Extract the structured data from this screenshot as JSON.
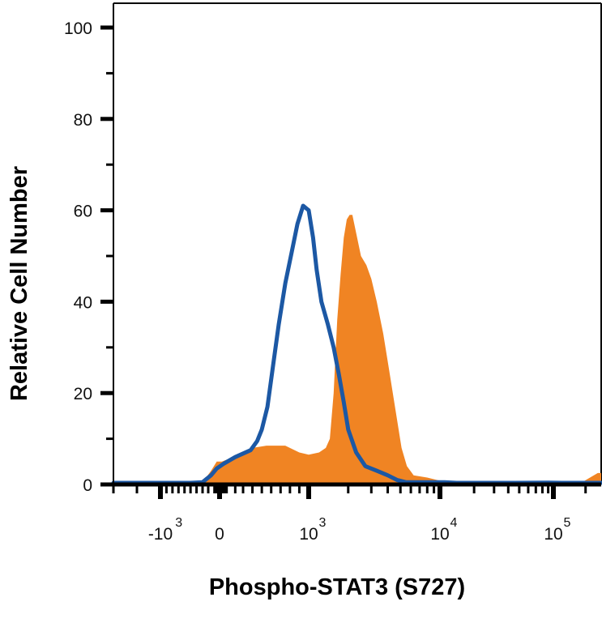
{
  "chart_data": {
    "type": "area",
    "title": "",
    "xlabel": "Phospho-STAT3 (S727)",
    "ylabel": "Relative Cell Number",
    "x_scale": "biexponential",
    "xlim": [
      -3000,
      280000
    ],
    "ylim": [
      0,
      105
    ],
    "grid": false,
    "yticks": [
      {
        "value": 0,
        "label": "0"
      },
      {
        "value": 20,
        "label": "20"
      },
      {
        "value": 40,
        "label": "40"
      },
      {
        "value": 60,
        "label": "60"
      },
      {
        "value": 80,
        "label": "80"
      },
      {
        "value": 100,
        "label": "100"
      }
    ],
    "xticks": [
      {
        "value": -1000,
        "base": "-10",
        "exp": "3"
      },
      {
        "value": 0,
        "base": "0",
        "exp": ""
      },
      {
        "value": 1000,
        "base": "10",
        "exp": "3"
      },
      {
        "value": 10000,
        "base": "10",
        "exp": "4"
      },
      {
        "value": 100000,
        "base": "10",
        "exp": "5"
      }
    ],
    "series": [
      {
        "style": "filled",
        "color": "#f08423",
        "points": [
          [
            -3000,
            0
          ],
          [
            -500,
            0
          ],
          [
            -300,
            0.5
          ],
          [
            -150,
            3
          ],
          [
            -50,
            5
          ],
          [
            30,
            5
          ],
          [
            100,
            5.5
          ],
          [
            250,
            6.5
          ],
          [
            400,
            8
          ],
          [
            550,
            8.5
          ],
          [
            750,
            8.5
          ],
          [
            900,
            7
          ],
          [
            1000,
            6.5
          ],
          [
            1200,
            7
          ],
          [
            1350,
            8
          ],
          [
            1450,
            10
          ],
          [
            1550,
            20
          ],
          [
            1650,
            36
          ],
          [
            1750,
            46
          ],
          [
            1850,
            54
          ],
          [
            1950,
            58
          ],
          [
            2050,
            59
          ],
          [
            2150,
            59
          ],
          [
            2300,
            55
          ],
          [
            2500,
            50
          ],
          [
            2750,
            48
          ],
          [
            3000,
            45
          ],
          [
            3300,
            40
          ],
          [
            3700,
            33
          ],
          [
            4100,
            25
          ],
          [
            4600,
            16
          ],
          [
            5100,
            8
          ],
          [
            5600,
            4
          ],
          [
            6300,
            2
          ],
          [
            8000,
            1.5
          ],
          [
            10500,
            0.7
          ],
          [
            13000,
            0.3
          ],
          [
            18000,
            0.2
          ],
          [
            28000,
            0.5
          ],
          [
            45000,
            0.6
          ],
          [
            75000,
            0.3
          ],
          [
            120000,
            0.1
          ],
          [
            180000,
            0.3
          ],
          [
            220000,
            1.5
          ],
          [
            260000,
            2.5
          ],
          [
            280000,
            2.5
          ]
        ]
      },
      {
        "style": "line",
        "color": "#1c58a4",
        "points": [
          [
            -3000,
            0
          ],
          [
            -500,
            0
          ],
          [
            -300,
            0.5
          ],
          [
            -150,
            2
          ],
          [
            -50,
            3.5
          ],
          [
            50,
            4.5
          ],
          [
            200,
            6
          ],
          [
            380,
            7.5
          ],
          [
            450,
            9.5
          ],
          [
            500,
            12
          ],
          [
            560,
            17
          ],
          [
            620,
            26
          ],
          [
            680,
            35
          ],
          [
            750,
            44
          ],
          [
            820,
            51
          ],
          [
            880,
            57
          ],
          [
            940,
            61
          ],
          [
            1000,
            60
          ],
          [
            1080,
            54
          ],
          [
            1150,
            47
          ],
          [
            1250,
            40
          ],
          [
            1400,
            35
          ],
          [
            1550,
            30
          ],
          [
            1700,
            24
          ],
          [
            1850,
            18
          ],
          [
            2000,
            12
          ],
          [
            2300,
            7
          ],
          [
            2700,
            4
          ],
          [
            3300,
            3
          ],
          [
            4000,
            2
          ],
          [
            4700,
            1
          ],
          [
            5500,
            0.5
          ],
          [
            8000,
            0.5
          ],
          [
            11000,
            0.5
          ],
          [
            14000,
            0.2
          ],
          [
            40000,
            0.1
          ],
          [
            90000,
            0.4
          ],
          [
            120000,
            0.3
          ],
          [
            280000,
            0
          ]
        ]
      }
    ]
  }
}
